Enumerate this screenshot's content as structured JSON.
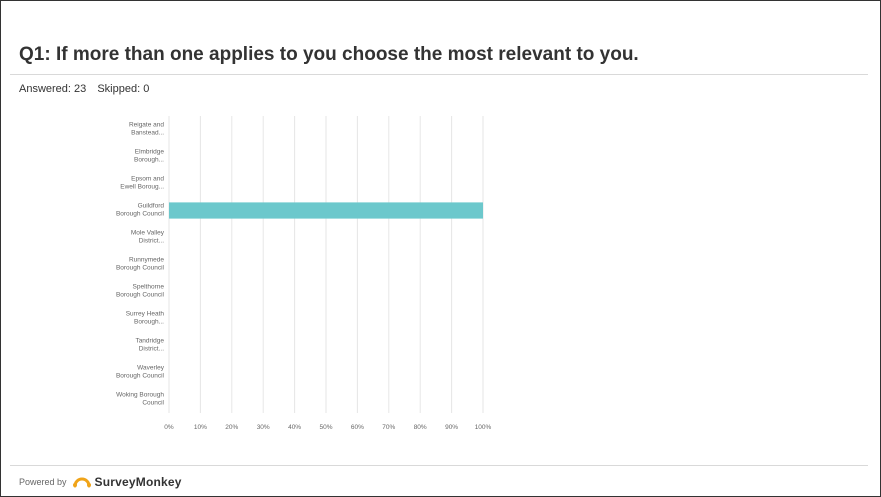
{
  "question": {
    "title": "Q1: If more than one applies to you choose the most relevant to you.",
    "answered": "Answered: 23",
    "skipped": "Skipped: 0"
  },
  "footer": {
    "powered_by": "Powered by",
    "brand": "SurveyMonkey",
    "brand_icon": "surveymonkey-logo-icon"
  },
  "colors": {
    "bar": "#6cc8cc",
    "grid": "#e6e6e6",
    "label": "#666666"
  },
  "chart_data": {
    "type": "bar",
    "orientation": "horizontal",
    "categories": [
      [
        "Reigate and",
        "Banstead..."
      ],
      [
        "Elmbridge",
        "Borough..."
      ],
      [
        "Epsom and",
        "Ewell Boroug..."
      ],
      [
        "Guildford",
        "Borough Council"
      ],
      [
        "Mole Valley",
        "District..."
      ],
      [
        "Runnymede",
        "Borough Council"
      ],
      [
        "Spelthorne",
        "Borough Council"
      ],
      [
        "Surrey Heath",
        "Borough..."
      ],
      [
        "Tandridge",
        "District..."
      ],
      [
        "Waverley",
        "Borough Council"
      ],
      [
        "Woking Borough",
        "Council"
      ]
    ],
    "values": [
      0,
      0,
      0,
      100,
      0,
      0,
      0,
      0,
      0,
      0,
      0
    ],
    "xlim": [
      0,
      100
    ],
    "xticks": [
      "0%",
      "10%",
      "20%",
      "30%",
      "40%",
      "50%",
      "60%",
      "70%",
      "80%",
      "90%",
      "100%"
    ],
    "grid": true
  }
}
